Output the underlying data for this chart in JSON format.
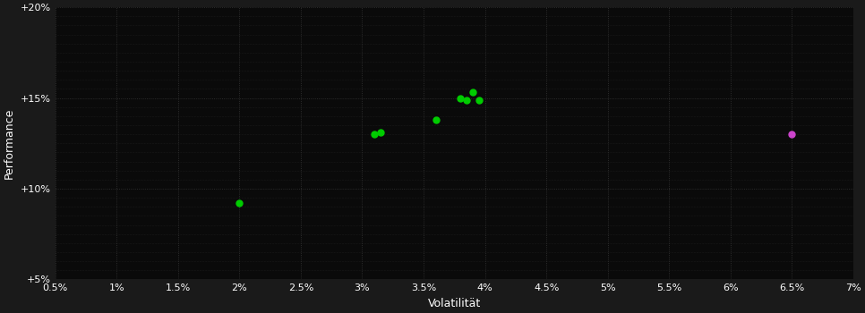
{
  "background_color": "#1a1a1a",
  "plot_bg_color": "#0a0a0a",
  "grid_color": "#404040",
  "text_color": "#ffffff",
  "xlabel": "Volatilität",
  "ylabel": "Performance",
  "xlim": [
    0.005,
    0.07
  ],
  "ylim": [
    0.05,
    0.2
  ],
  "xticks": [
    0.005,
    0.01,
    0.015,
    0.02,
    0.025,
    0.03,
    0.035,
    0.04,
    0.045,
    0.05,
    0.055,
    0.06,
    0.065,
    0.07
  ],
  "xtick_labels": [
    "0.5%",
    "1%",
    "1.5%",
    "2%",
    "2.5%",
    "3%",
    "3.5%",
    "4%",
    "4.5%",
    "5%",
    "5.5%",
    "6%",
    "6.5%",
    "7%"
  ],
  "yticks": [
    0.05,
    0.1,
    0.15,
    0.2
  ],
  "ytick_labels": [
    "+5%",
    "+10%",
    "+15%",
    "+20%"
  ],
  "minor_yticks": [
    0.055,
    0.06,
    0.065,
    0.07,
    0.075,
    0.08,
    0.085,
    0.09,
    0.095,
    0.105,
    0.11,
    0.115,
    0.12,
    0.125,
    0.13,
    0.135,
    0.14,
    0.145,
    0.155,
    0.16,
    0.165,
    0.17,
    0.175,
    0.18,
    0.185,
    0.19,
    0.195
  ],
  "green_points": [
    [
      0.02,
      0.092
    ],
    [
      0.031,
      0.13
    ],
    [
      0.0315,
      0.131
    ],
    [
      0.036,
      0.138
    ],
    [
      0.038,
      0.15
    ],
    [
      0.039,
      0.153
    ],
    [
      0.0385,
      0.149
    ],
    [
      0.0395,
      0.149
    ]
  ],
  "magenta_points": [
    [
      0.065,
      0.13
    ]
  ],
  "green_color": "#00cc00",
  "magenta_color": "#cc44cc",
  "marker_size": 25,
  "figsize": [
    9.66,
    3.5
  ],
  "dpi": 100
}
